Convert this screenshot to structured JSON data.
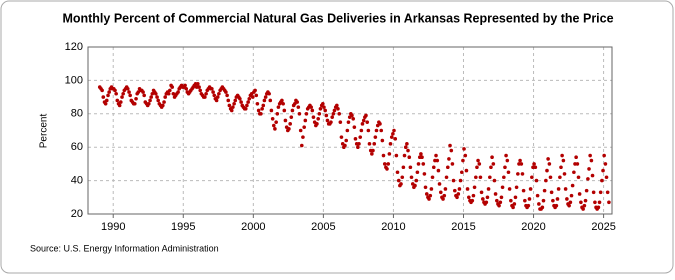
{
  "chart_data": {
    "type": "scatter",
    "title": "Monthly Percent of Commercial Natural Gas Deliveries in Arkansas Represented by the Price",
    "y_label": "Percent",
    "source": "Source: U.S. Energy Information Administration",
    "color": "#b30000",
    "grid": true,
    "xlim": [
      1988.2,
      2025.6
    ],
    "xticks": [
      1990,
      1995,
      2000,
      2005,
      2010,
      2015,
      2020,
      2025
    ],
    "ylim": [
      20,
      120
    ],
    "yticks": [
      20,
      40,
      60,
      80,
      100,
      120
    ],
    "x": [
      1989.04,
      1989.13,
      1989.21,
      1989.29,
      1989.38,
      1989.46,
      1989.54,
      1989.63,
      1989.71,
      1989.79,
      1989.88,
      1989.96,
      1990.04,
      1990.13,
      1990.21,
      1990.29,
      1990.38,
      1990.46,
      1990.54,
      1990.63,
      1990.71,
      1990.79,
      1990.88,
      1990.96,
      1991.04,
      1991.13,
      1991.21,
      1991.29,
      1991.38,
      1991.46,
      1991.54,
      1991.63,
      1991.71,
      1991.79,
      1991.88,
      1991.96,
      1992.04,
      1992.13,
      1992.21,
      1992.29,
      1992.38,
      1992.46,
      1992.54,
      1992.63,
      1992.71,
      1992.79,
      1992.88,
      1992.96,
      1993.04,
      1993.13,
      1993.21,
      1993.29,
      1993.38,
      1993.46,
      1993.54,
      1993.63,
      1993.71,
      1993.79,
      1993.88,
      1993.96,
      1994.04,
      1994.13,
      1994.21,
      1994.29,
      1994.38,
      1994.46,
      1994.54,
      1994.63,
      1994.71,
      1994.79,
      1994.88,
      1994.96,
      1995.04,
      1995.13,
      1995.21,
      1995.29,
      1995.38,
      1995.46,
      1995.54,
      1995.63,
      1995.71,
      1995.79,
      1995.88,
      1995.96,
      1996.04,
      1996.13,
      1996.21,
      1996.29,
      1996.38,
      1996.46,
      1996.54,
      1996.63,
      1996.71,
      1996.79,
      1996.88,
      1996.96,
      1997.04,
      1997.13,
      1997.21,
      1997.29,
      1997.38,
      1997.46,
      1997.54,
      1997.63,
      1997.71,
      1997.79,
      1997.88,
      1997.96,
      1998.04,
      1998.13,
      1998.21,
      1998.29,
      1998.38,
      1998.46,
      1998.54,
      1998.63,
      1998.71,
      1998.79,
      1998.88,
      1998.96,
      1999.04,
      1999.13,
      1999.21,
      1999.29,
      1999.38,
      1999.46,
      1999.54,
      1999.63,
      1999.71,
      1999.79,
      1999.88,
      1999.96,
      2000.04,
      2000.13,
      2000.21,
      2000.29,
      2000.38,
      2000.46,
      2000.54,
      2000.63,
      2000.71,
      2000.79,
      2000.88,
      2000.96,
      2001.04,
      2001.13,
      2001.21,
      2001.29,
      2001.38,
      2001.46,
      2001.54,
      2001.63,
      2001.71,
      2001.79,
      2001.88,
      2001.96,
      2002.04,
      2002.13,
      2002.21,
      2002.29,
      2002.38,
      2002.46,
      2002.54,
      2002.63,
      2002.71,
      2002.79,
      2002.88,
      2002.96,
      2003.04,
      2003.13,
      2003.21,
      2003.29,
      2003.38,
      2003.46,
      2003.54,
      2003.63,
      2003.71,
      2003.79,
      2003.88,
      2003.96,
      2004.04,
      2004.13,
      2004.21,
      2004.29,
      2004.38,
      2004.46,
      2004.54,
      2004.63,
      2004.71,
      2004.79,
      2004.88,
      2004.96,
      2005.04,
      2005.13,
      2005.21,
      2005.29,
      2005.38,
      2005.46,
      2005.54,
      2005.63,
      2005.71,
      2005.79,
      2005.88,
      2005.96,
      2006.04,
      2006.13,
      2006.21,
      2006.29,
      2006.38,
      2006.46,
      2006.54,
      2006.63,
      2006.71,
      2006.79,
      2006.88,
      2006.96,
      2007.04,
      2007.13,
      2007.21,
      2007.29,
      2007.38,
      2007.46,
      2007.54,
      2007.63,
      2007.71,
      2007.79,
      2007.88,
      2007.96,
      2008.04,
      2008.13,
      2008.21,
      2008.29,
      2008.38,
      2008.46,
      2008.54,
      2008.63,
      2008.71,
      2008.79,
      2008.88,
      2008.96,
      2009.04,
      2009.13,
      2009.21,
      2009.29,
      2009.38,
      2009.46,
      2009.54,
      2009.63,
      2009.71,
      2009.79,
      2009.88,
      2009.96,
      2010.04,
      2010.13,
      2010.21,
      2010.29,
      2010.38,
      2010.46,
      2010.54,
      2010.63,
      2010.71,
      2010.79,
      2010.88,
      2010.96,
      2011.04,
      2011.13,
      2011.21,
      2011.29,
      2011.38,
      2011.46,
      2011.54,
      2011.63,
      2011.71,
      2011.79,
      2011.88,
      2011.96,
      2012.04,
      2012.13,
      2012.21,
      2012.29,
      2012.38,
      2012.46,
      2012.54,
      2012.63,
      2012.71,
      2012.79,
      2012.88,
      2012.96,
      2013.04,
      2013.13,
      2013.21,
      2013.29,
      2013.38,
      2013.46,
      2013.54,
      2013.63,
      2013.71,
      2013.79,
      2013.88,
      2013.96,
      2014.04,
      2014.13,
      2014.21,
      2014.29,
      2014.38,
      2014.46,
      2014.54,
      2014.63,
      2014.71,
      2014.79,
      2014.88,
      2014.96,
      2015.04,
      2015.13,
      2015.21,
      2015.29,
      2015.38,
      2015.46,
      2015.54,
      2015.63,
      2015.71,
      2015.79,
      2015.88,
      2015.96,
      2016.04,
      2016.13,
      2016.21,
      2016.29,
      2016.38,
      2016.46,
      2016.54,
      2016.63,
      2016.71,
      2016.79,
      2016.88,
      2016.96,
      2017.04,
      2017.13,
      2017.21,
      2017.29,
      2017.38,
      2017.46,
      2017.54,
      2017.63,
      2017.71,
      2017.79,
      2017.88,
      2017.96,
      2018.04,
      2018.13,
      2018.21,
      2018.29,
      2018.38,
      2018.46,
      2018.54,
      2018.63,
      2018.71,
      2018.79,
      2018.88,
      2018.96,
      2019.04,
      2019.13,
      2019.21,
      2019.29,
      2019.38,
      2019.46,
      2019.54,
      2019.63,
      2019.71,
      2019.79,
      2019.88,
      2019.96,
      2020.04,
      2020.13,
      2020.21,
      2020.29,
      2020.38,
      2020.46,
      2020.54,
      2020.63,
      2020.71,
      2020.79,
      2020.88,
      2020.96,
      2021.04,
      2021.13,
      2021.21,
      2021.29,
      2021.38,
      2021.46,
      2021.54,
      2021.63,
      2021.71,
      2021.79,
      2021.88,
      2021.96,
      2022.04,
      2022.13,
      2022.21,
      2022.29,
      2022.38,
      2022.46,
      2022.54,
      2022.63,
      2022.71,
      2022.79,
      2022.88,
      2022.96,
      2023.04,
      2023.13,
      2023.21,
      2023.29,
      2023.38,
      2023.46,
      2023.54,
      2023.63,
      2023.71,
      2023.79,
      2023.88,
      2023.96,
      2024.04,
      2024.13,
      2024.21,
      2024.29,
      2024.38,
      2024.46,
      2024.54,
      2024.63,
      2024.71,
      2024.79,
      2024.88,
      2024.96,
      2025.04,
      2025.13,
      2025.21,
      2025.29,
      2025.38
    ],
    "values": [
      96,
      95,
      94,
      90,
      87,
      86,
      88,
      91,
      93,
      95,
      96,
      95,
      95,
      94,
      92,
      88,
      86,
      85,
      87,
      90,
      92,
      94,
      95,
      96,
      95,
      93,
      91,
      88,
      87,
      86,
      86,
      89,
      92,
      93,
      95,
      94,
      94,
      93,
      91,
      87,
      86,
      85,
      86,
      88,
      90,
      92,
      94,
      93,
      92,
      90,
      88,
      86,
      85,
      84,
      85,
      87,
      90,
      92,
      93,
      92,
      94,
      97,
      96,
      92,
      90,
      91,
      92,
      93,
      95,
      96,
      97,
      96,
      96,
      97,
      95,
      93,
      92,
      93,
      94,
      95,
      96,
      97,
      98,
      96,
      98,
      96,
      94,
      92,
      91,
      90,
      90,
      92,
      94,
      95,
      96,
      95,
      95,
      93,
      91,
      89,
      88,
      90,
      92,
      94,
      95,
      96,
      95,
      94,
      93,
      91,
      88,
      85,
      83,
      82,
      84,
      86,
      88,
      90,
      91,
      90,
      89,
      87,
      85,
      84,
      83,
      83,
      85,
      87,
      89,
      91,
      92,
      90,
      93,
      94,
      91,
      86,
      82,
      80,
      80,
      83,
      85,
      88,
      90,
      92,
      93,
      92,
      88,
      82,
      77,
      73,
      71,
      75,
      80,
      84,
      86,
      87,
      88,
      86,
      82,
      76,
      72,
      70,
      71,
      74,
      78,
      82,
      85,
      86,
      88,
      87,
      84,
      80,
      70,
      61,
      66,
      72,
      76,
      80,
      83,
      84,
      85,
      84,
      82,
      78,
      75,
      73,
      74,
      77,
      80,
      83,
      85,
      86,
      84,
      82,
      79,
      76,
      74,
      74,
      75,
      78,
      80,
      82,
      84,
      85,
      83,
      80,
      75,
      66,
      62,
      60,
      61,
      64,
      70,
      75,
      78,
      80,
      79,
      77,
      72,
      65,
      62,
      60,
      62,
      66,
      70,
      74,
      76,
      78,
      79,
      75,
      70,
      62,
      58,
      56,
      58,
      62,
      66,
      70,
      73,
      75,
      74,
      70,
      64,
      55,
      50,
      48,
      47,
      50,
      56,
      62,
      66,
      68,
      70,
      65,
      55,
      45,
      40,
      37,
      38,
      42,
      48,
      55,
      60,
      62,
      58,
      54,
      48,
      42,
      38,
      36,
      37,
      40,
      45,
      50,
      54,
      56,
      54,
      50,
      44,
      36,
      32,
      30,
      29,
      31,
      35,
      42,
      48,
      52,
      55,
      52,
      46,
      38,
      33,
      30,
      29,
      31,
      35,
      42,
      48,
      53,
      61,
      58,
      50,
      40,
      34,
      31,
      30,
      32,
      35,
      40,
      45,
      52,
      59,
      55,
      46,
      35,
      30,
      28,
      27,
      28,
      31,
      36,
      42,
      48,
      52,
      50,
      42,
      33,
      29,
      27,
      26,
      27,
      30,
      35,
      42,
      48,
      54,
      50,
      40,
      32,
      28,
      26,
      25,
      27,
      30,
      36,
      42,
      48,
      55,
      52,
      45,
      35,
      28,
      25,
      24,
      26,
      30,
      36,
      44,
      50,
      52,
      50,
      44,
      34,
      28,
      25,
      24,
      25,
      29,
      35,
      42,
      48,
      50,
      48,
      40,
      31,
      26,
      23,
      23,
      24,
      28,
      34,
      40,
      46,
      53,
      50,
      42,
      33,
      28,
      25,
      24,
      25,
      29,
      35,
      42,
      48,
      55,
      52,
      44,
      35,
      29,
      26,
      25,
      27,
      31,
      37,
      45,
      50,
      54,
      50,
      42,
      32,
      27,
      24,
      23,
      25,
      28,
      34,
      41,
      47,
      55,
      52,
      43,
      33,
      27,
      24,
      23,
      24,
      27,
      33,
      40,
      46,
      55,
      50,
      42,
      33,
      27
    ]
  }
}
